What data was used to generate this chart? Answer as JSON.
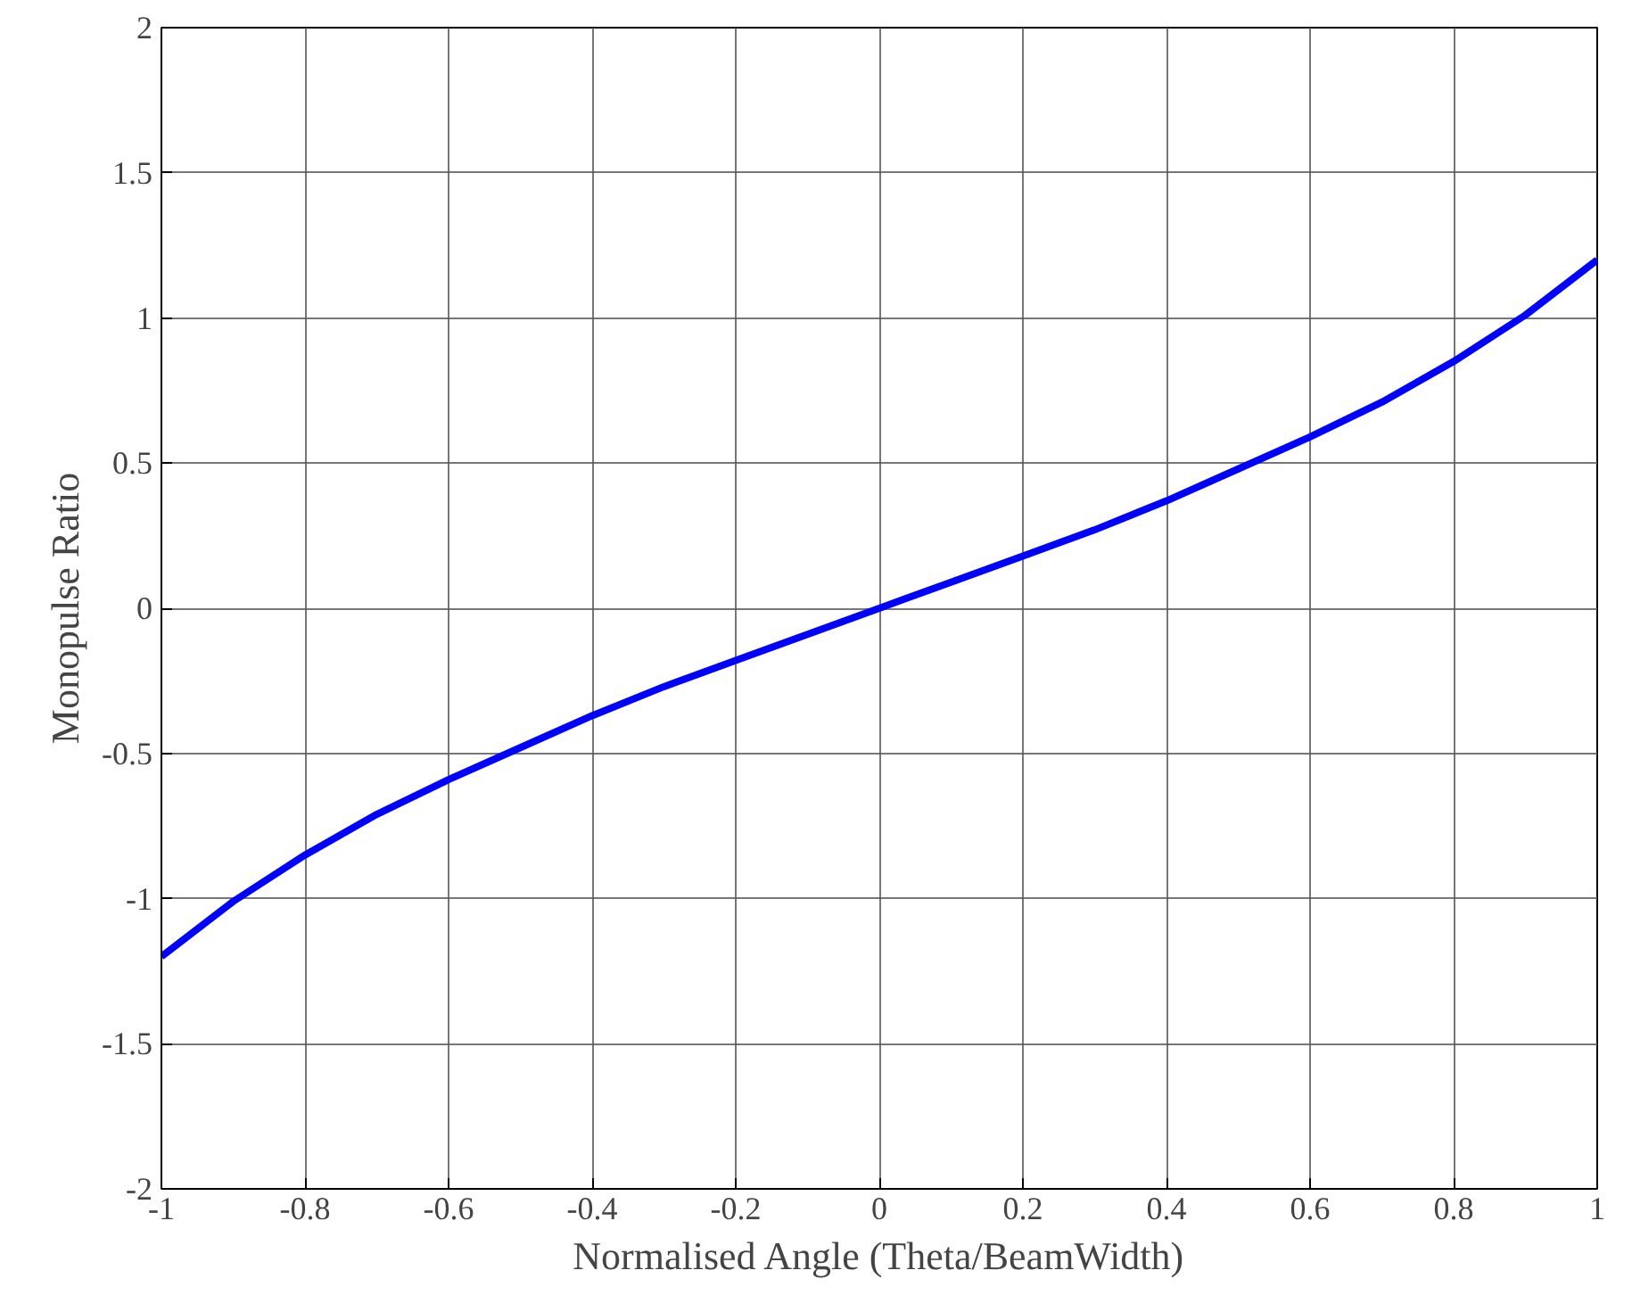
{
  "chart_data": {
    "type": "line",
    "xlabel": "Normalised Angle (Theta/BeamWidth)",
    "ylabel": "Monopulse Ratio",
    "x": [
      -1,
      -0.9,
      -0.8,
      -0.7,
      -0.6,
      -0.5,
      -0.4,
      -0.3,
      -0.2,
      -0.1,
      0,
      0.1,
      0.2,
      0.3,
      0.4,
      0.5,
      0.6,
      0.7,
      0.8,
      0.9,
      1
    ],
    "series": [
      {
        "color": "#0000ff",
        "values": [
          -1.2,
          -1.01,
          -0.85,
          -0.71,
          -0.59,
          -0.48,
          -0.37,
          -0.27,
          -0.18,
          -0.09,
          0,
          0.09,
          0.18,
          0.27,
          0.37,
          0.48,
          0.59,
          0.71,
          0.85,
          1.01,
          1.2
        ]
      }
    ],
    "xlim": [
      -1,
      1
    ],
    "ylim": [
      -2,
      2
    ],
    "xticks": [
      -1,
      -0.8,
      -0.6,
      -0.4,
      -0.2,
      0,
      0.2,
      0.4,
      0.6,
      0.8,
      1
    ],
    "yticks": [
      -2,
      -1.5,
      -1,
      -0.5,
      0,
      0.5,
      1,
      1.5,
      2
    ],
    "grid": true,
    "marker": "none",
    "line_style": "solid"
  }
}
